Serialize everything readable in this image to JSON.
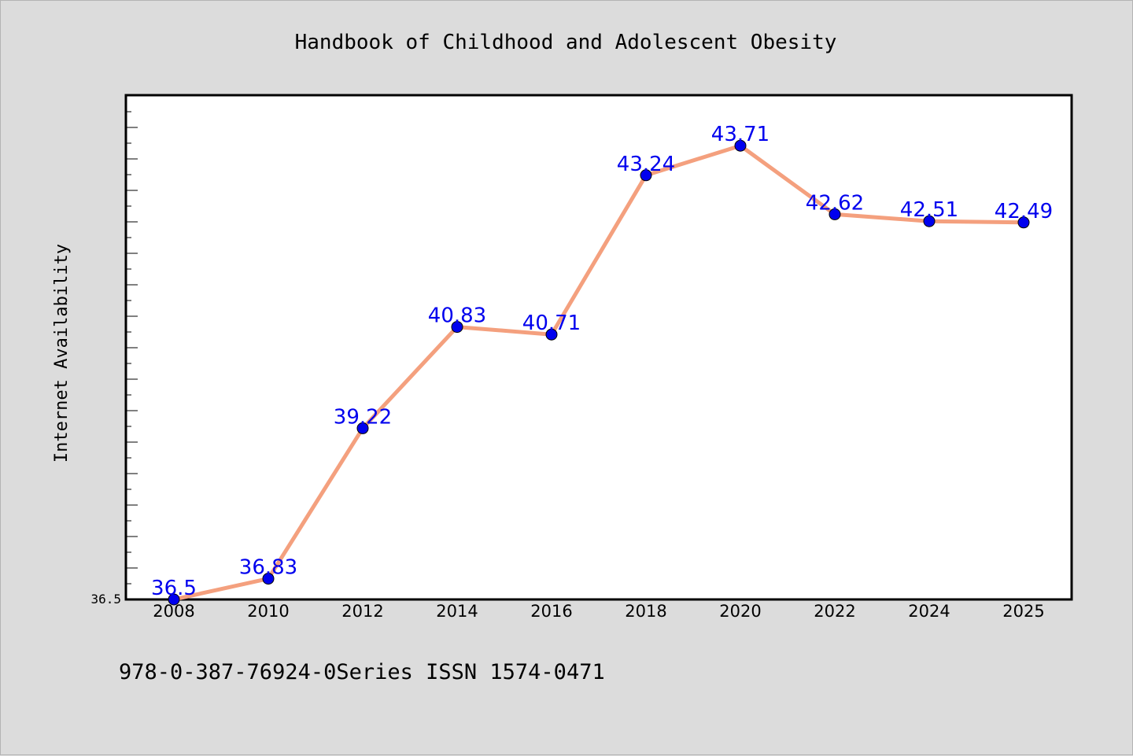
{
  "chart_data": {
    "type": "line",
    "title": "Handbook of Childhood and Adolescent Obesity",
    "xlabel": "",
    "ylabel": "Internet Availability",
    "categories": [
      "2008",
      "2010",
      "2012",
      "2014",
      "2016",
      "2018",
      "2020",
      "2022",
      "2024",
      "2025"
    ],
    "series": [
      {
        "values": [
          36.5,
          36.83,
          39.22,
          40.83,
          40.71,
          43.24,
          43.71,
          42.62,
          42.51,
          42.49
        ],
        "data_labels": [
          "36.5",
          "36.83",
          "39.22",
          "40.83",
          "40.71",
          "43.24",
          "43.71",
          "42.62",
          "42.51",
          "42.49"
        ]
      }
    ],
    "ylim": [
      36.5,
      44.5
    ],
    "y_tick_labels": [
      "36.5"
    ],
    "grid": false,
    "legend": "none",
    "colors": {
      "line": "#f4a07e",
      "marker": "#0000ee",
      "data_label": "#0000ee",
      "background": "#dcdcdc",
      "plot_area": "#ffffff"
    }
  },
  "footer": {
    "text": "978-0-387-76924-0Series ISSN 1574-0471"
  }
}
